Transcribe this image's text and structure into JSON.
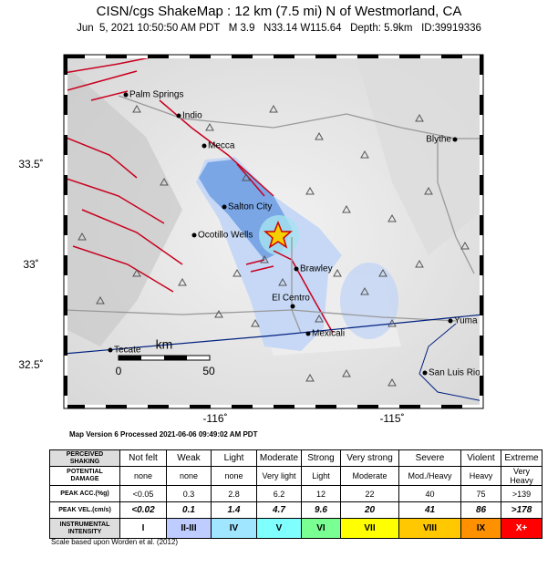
{
  "header": {
    "title": "CISN/cgs ShakeMap : 12 km (7.5 mi) N of Westmorland, CA",
    "subtitle": "Jun  5, 2021 10:50:50 AM PDT   M 3.9   N33.14 W115.64   Depth: 5.9km   ID:39919336"
  },
  "map": {
    "lat_labels": [
      "33.5˚",
      "33˚",
      "32.5˚"
    ],
    "lon_labels": [
      "-116˚",
      "-115˚"
    ],
    "cities": [
      "Palm Springs",
      "Indio",
      "Mecca",
      "Blythe",
      "Salton City",
      "Ocotillo Wells",
      "Brawley",
      "El Centro",
      "Yuma",
      "Mexicali",
      "Tecate",
      "San Luis Rio C"
    ],
    "scale": {
      "unit": "km",
      "start": "0",
      "end": "50"
    },
    "version": "Map Version 6 Processed 2021-06-06 09:49:02 AM PDT"
  },
  "table": {
    "rows": [
      {
        "label": [
          "PERCEIVED",
          "SHAKING"
        ],
        "cells": [
          "Not felt",
          "Weak",
          "Light",
          "Moderate",
          "Strong",
          "Very strong",
          "Severe",
          "Violent",
          "Extreme"
        ]
      },
      {
        "label": [
          "POTENTIAL",
          "DAMAGE"
        ],
        "cells": [
          "none",
          "none",
          "none",
          "Very light",
          "Light",
          "Moderate",
          "Mod./Heavy",
          "Heavy",
          "Very Heavy"
        ]
      },
      {
        "label": [
          "PEAK ACC.(%g)"
        ],
        "cells": [
          "<0.05",
          "0.3",
          "2.8",
          "6.2",
          "12",
          "22",
          "40",
          "75",
          ">139"
        ]
      },
      {
        "label": [
          "PEAK VEL.(cm/s)"
        ],
        "cells": [
          "<0.02",
          "0.1",
          "1.4",
          "4.7",
          "9.6",
          "20",
          "41",
          "86",
          ">178"
        ]
      },
      {
        "label": [
          "INSTRUMENTAL",
          "INTENSITY"
        ],
        "cells": [
          "I",
          "II-III",
          "IV",
          "V",
          "VI",
          "VII",
          "VIII",
          "IX",
          "X+"
        ]
      }
    ],
    "footnote": "Scale based upon Worden et al. (2012)"
  }
}
